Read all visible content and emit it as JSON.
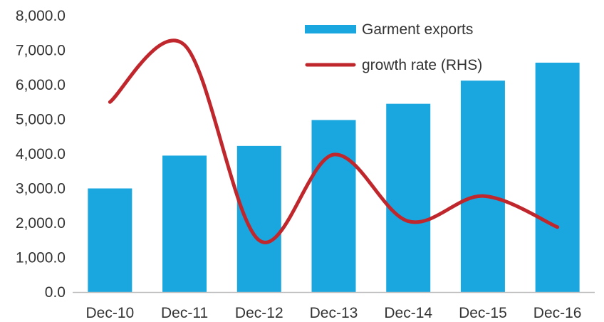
{
  "chart_data": {
    "type": "bar",
    "categories": [
      "Dec-10",
      "Dec-11",
      "Dec-12",
      "Dec-13",
      "Dec-14",
      "Dec-15",
      "Dec-16"
    ],
    "series": [
      {
        "name": "Garment exports",
        "type": "bar",
        "axis": "left",
        "values": [
          3000,
          3950,
          4230,
          4980,
          5450,
          6120,
          6640
        ],
        "color": "#1AA7DF"
      },
      {
        "name": "growth rate (RHS)",
        "type": "line",
        "axis": "right",
        "values": [
          5500,
          7150,
          1500,
          3980,
          2050,
          2780,
          1880
        ],
        "color": "#C0272D"
      }
    ],
    "ylim": [
      0,
      8000
    ],
    "yticks": [
      "0.0",
      "1,000.0",
      "2,000.0",
      "3,000.0",
      "4,000.0",
      "5,000.0",
      "6,000.0",
      "7,000.0",
      "8,000.0"
    ],
    "ytick_values": [
      0,
      1000,
      2000,
      3000,
      4000,
      5000,
      6000,
      7000,
      8000
    ],
    "grid": false,
    "legend": "top-right"
  }
}
